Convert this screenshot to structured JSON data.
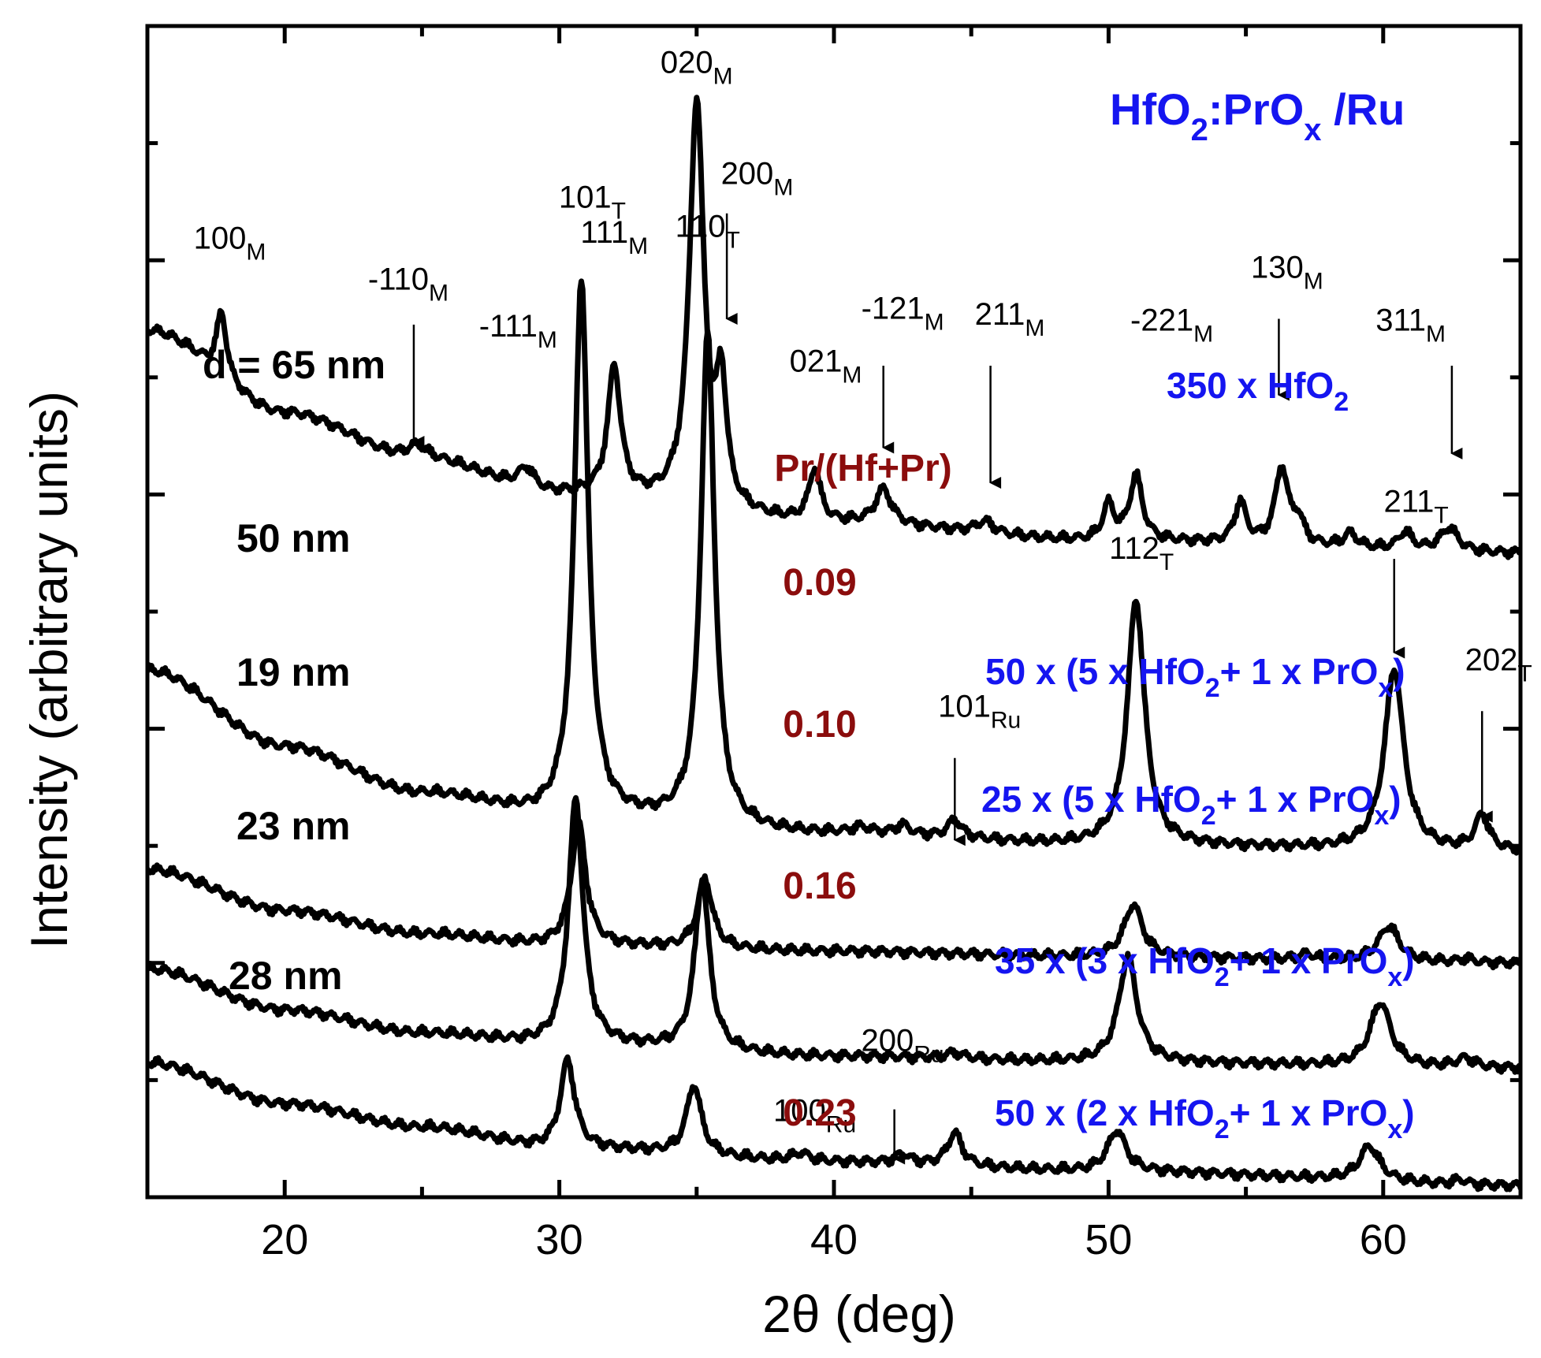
{
  "colors": {
    "title": "#1515f0",
    "recipe": "#1515f0",
    "ratio": "#8b0d0d",
    "trace": "#000000"
  },
  "chart_data": {
    "type": "line",
    "title": {
      "main": "HfO",
      "sub1": "2",
      "mid": ":PrO",
      "sub2": "x",
      "tail": " /Ru"
    },
    "xlabel": "2θ (deg)",
    "ylabel": "Intensity (arbitrary units)",
    "xlim": [
      15,
      65
    ],
    "xticks": [
      20,
      30,
      40,
      50,
      60
    ],
    "ratio_header": "Pr/(Hf+Pr)",
    "series": [
      {
        "thickness": "d = 65 nm",
        "recipe": {
          "pre": "350 x HfO",
          "sub": "2",
          "post": ""
        },
        "ratio": "",
        "background": [
          [
            15,
            7.4
          ],
          [
            20,
            6.7
          ],
          [
            25,
            6.3
          ],
          [
            30,
            6.0
          ],
          [
            40,
            5.75
          ],
          [
            50,
            5.6
          ],
          [
            65,
            5.5
          ]
        ],
        "peaks": [
          [
            17.7,
            0.55,
            0.22
          ],
          [
            24.8,
            0.12,
            0.45
          ],
          [
            28.8,
            0.18,
            0.35
          ],
          [
            32.0,
            1.1,
            0.28
          ],
          [
            35.0,
            3.45,
            0.32
          ],
          [
            35.9,
            1.0,
            0.22
          ],
          [
            39.3,
            0.45,
            0.25
          ],
          [
            41.8,
            0.3,
            0.35
          ],
          [
            45.5,
            0.1,
            0.4
          ],
          [
            50.0,
            0.3,
            0.25
          ],
          [
            51.0,
            0.55,
            0.28
          ],
          [
            54.8,
            0.35,
            0.25
          ],
          [
            56.3,
            0.65,
            0.28
          ],
          [
            56.9,
            0.2,
            0.25
          ],
          [
            58.8,
            0.12,
            0.3
          ],
          [
            60.8,
            0.15,
            0.3
          ],
          [
            62.4,
            0.2,
            0.4
          ]
        ],
        "labels": [
          {
            "x": 18.0,
            "y": 8.1,
            "main": "100",
            "sub": "M"
          },
          {
            "x": 24.5,
            "y": 7.75,
            "main": "-110",
            "sub": "M",
            "arrow": [
              24.7,
              7.45,
              6.45
            ]
          },
          {
            "x": 28.5,
            "y": 7.35,
            "main": "-111",
            "sub": "M"
          },
          {
            "x": 32.0,
            "y": 8.15,
            "main": "111",
            "sub": "M"
          },
          {
            "x": 35.0,
            "y": 9.6,
            "main": "020",
            "sub": "M"
          },
          {
            "x": 37.2,
            "y": 8.65,
            "main": "200",
            "sub": "M",
            "arrow": [
              36.1,
              8.4,
              7.5
            ]
          },
          {
            "x": 39.7,
            "y": 7.05,
            "main": "021",
            "sub": "M"
          },
          {
            "x": 42.5,
            "y": 7.5,
            "main": "-121",
            "sub": "M",
            "arrow": [
              41.8,
              7.1,
              6.4
            ]
          },
          {
            "x": 46.4,
            "y": 7.45,
            "main": "211",
            "sub": "M",
            "arrow": [
              45.7,
              7.1,
              6.1
            ]
          },
          {
            "x": 52.3,
            "y": 7.4,
            "main": "-221",
            "sub": "M"
          },
          {
            "x": 56.5,
            "y": 7.85,
            "main": "130",
            "sub": "M",
            "arrow": [
              56.2,
              7.5,
              6.85
            ]
          },
          {
            "x": 61.0,
            "y": 7.4,
            "main": "311",
            "sub": "M",
            "arrow": [
              62.5,
              7.1,
              6.35
            ]
          }
        ]
      },
      {
        "thickness": "50 nm",
        "recipe": {
          "pre": "50 x (5 x HfO",
          "sub": "2",
          "post": "+ 1 x PrO",
          "sub2": "x",
          "tail": ")"
        },
        "ratio": "0.09",
        "background": [
          [
            15,
            4.5
          ],
          [
            20,
            3.85
          ],
          [
            25,
            3.45
          ],
          [
            30,
            3.25
          ],
          [
            40,
            3.1
          ],
          [
            50,
            3.0
          ],
          [
            65,
            2.95
          ]
        ],
        "peaks": [
          [
            30.8,
            4.6,
            0.3
          ],
          [
            35.4,
            4.2,
            0.3
          ],
          [
            41.0,
            0.05,
            0.4
          ],
          [
            42.5,
            0.08,
            0.3
          ],
          [
            44.4,
            0.15,
            0.3
          ],
          [
            51.0,
            2.1,
            0.38
          ],
          [
            60.4,
            1.55,
            0.42
          ],
          [
            63.6,
            0.3,
            0.3
          ]
        ],
        "labels": [
          {
            "x": 31.2,
            "y": 8.45,
            "main": "101",
            "sub": "T"
          },
          {
            "x": 35.4,
            "y": 8.2,
            "main": "110",
            "sub": "T"
          },
          {
            "x": 45.3,
            "y": 4.1,
            "main": "101",
            "sub": "Ru",
            "arrow": [
              44.4,
              3.75,
              3.05
            ]
          },
          {
            "x": 51.2,
            "y": 5.45,
            "main": "112",
            "sub": "T"
          },
          {
            "x": 61.2,
            "y": 5.85,
            "main": "211",
            "sub": "T",
            "arrow": [
              60.4,
              5.45,
              4.65
            ]
          },
          {
            "x": 64.2,
            "y": 4.5,
            "main": "202",
            "sub": "T",
            "arrow": [
              63.6,
              4.15,
              3.25
            ]
          }
        ]
      },
      {
        "thickness": "19 nm",
        "recipe": {
          "pre": "25 x (5 x HfO",
          "sub": "2",
          "post": "+ 1 x PrO",
          "sub2": "x",
          "tail": ")"
        },
        "ratio": "0.10",
        "background": [
          [
            15,
            2.8
          ],
          [
            20,
            2.45
          ],
          [
            25,
            2.25
          ],
          [
            30,
            2.15
          ],
          [
            40,
            2.1
          ],
          [
            50,
            2.05
          ],
          [
            65,
            2.0
          ]
        ],
        "peaks": [
          [
            30.7,
            1.05,
            0.32
          ],
          [
            35.3,
            0.6,
            0.32
          ],
          [
            50.9,
            0.45,
            0.4
          ],
          [
            57.2,
            0.05,
            0.3
          ],
          [
            60.2,
            0.3,
            0.45
          ],
          [
            63.0,
            0.03,
            0.3
          ]
        ],
        "labels": []
      },
      {
        "thickness": "23 nm",
        "recipe": {
          "pre": "35 x (3 x HfO",
          "sub": "2",
          "post": "+ 1 x PrO",
          "sub2": "x",
          "tail": ")"
        },
        "ratio": "0.16",
        "background": [
          [
            15,
            1.95
          ],
          [
            20,
            1.6
          ],
          [
            25,
            1.4
          ],
          [
            30,
            1.3
          ],
          [
            40,
            1.2
          ],
          [
            50,
            1.15
          ],
          [
            65,
            1.1
          ]
        ],
        "peaks": [
          [
            30.6,
            2.1,
            0.32
          ],
          [
            35.2,
            1.45,
            0.32
          ],
          [
            44.4,
            0.05,
            0.4
          ],
          [
            50.7,
            0.9,
            0.4
          ],
          [
            59.9,
            0.55,
            0.45
          ],
          [
            63.0,
            0.08,
            0.4
          ]
        ],
        "labels": []
      },
      {
        "thickness": "28 nm",
        "recipe": {
          "pre": "50 x (2 x HfO",
          "sub": "2",
          "post": "+ 1 x PrO",
          "sub2": "x",
          "tail": ")"
        },
        "ratio": "0.23",
        "background": [
          [
            15,
            1.15
          ],
          [
            20,
            0.8
          ],
          [
            25,
            0.6
          ],
          [
            30,
            0.42
          ],
          [
            40,
            0.3
          ],
          [
            50,
            0.22
          ],
          [
            65,
            0.1
          ]
        ],
        "peaks": [
          [
            30.3,
            0.75,
            0.32
          ],
          [
            34.9,
            0.6,
            0.32
          ],
          [
            38.8,
            0.07,
            0.4
          ],
          [
            42.5,
            0.08,
            0.3
          ],
          [
            44.4,
            0.28,
            0.32
          ],
          [
            50.3,
            0.35,
            0.4
          ],
          [
            59.5,
            0.3,
            0.45
          ],
          [
            62.8,
            0.04,
            0.3
          ]
        ],
        "labels": [
          {
            "x": 39.3,
            "y": 0.65,
            "main": "100",
            "sub": "Ru"
          },
          {
            "x": 42.5,
            "y": 1.25,
            "main": "200",
            "sub": "Ru",
            "arrow": [
              42.2,
              0.75,
              0.33
            ]
          }
        ]
      }
    ]
  }
}
